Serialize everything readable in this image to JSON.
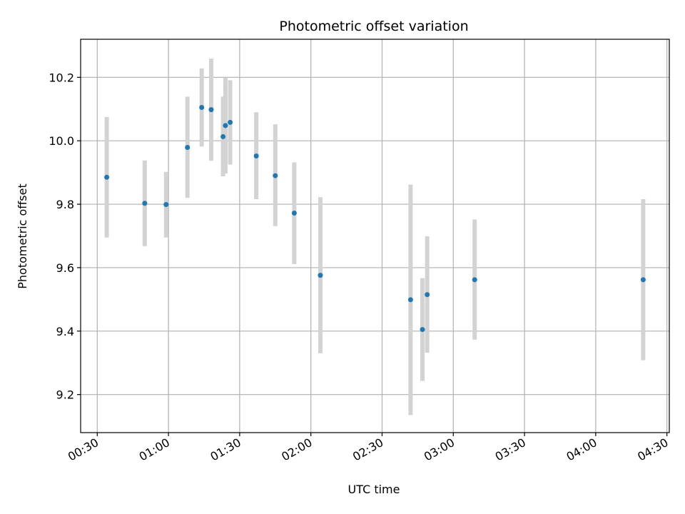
{
  "chart_data": {
    "type": "scatter",
    "title": "Photometric offset variation",
    "xlabel": "UTC time",
    "ylabel": "Photometric offset",
    "x_ticks": [
      "00:30",
      "01:00",
      "01:30",
      "02:00",
      "02:30",
      "03:00",
      "03:30",
      "04:00",
      "04:30"
    ],
    "y_ticks": [
      "9.2",
      "9.4",
      "9.6",
      "9.8",
      "10.0",
      "10.2"
    ],
    "xlim": [
      "00:23",
      "04:31"
    ],
    "ylim": [
      9.08,
      10.32
    ],
    "grid": true,
    "colors": {
      "marker": "#1f77b4",
      "errorbar": "#d3d3d3",
      "grid": "#b0b0b0",
      "axes": "#000000"
    },
    "points": [
      {
        "x": "00:34",
        "y": 9.885,
        "ylow": 9.695,
        "yhigh": 10.075
      },
      {
        "x": "00:50",
        "y": 9.803,
        "ylow": 9.668,
        "yhigh": 9.938
      },
      {
        "x": "00:59",
        "y": 9.799,
        "ylow": 9.695,
        "yhigh": 9.902
      },
      {
        "x": "01:08",
        "y": 9.979,
        "ylow": 9.82,
        "yhigh": 10.139
      },
      {
        "x": "01:14",
        "y": 10.105,
        "ylow": 9.982,
        "yhigh": 10.228
      },
      {
        "x": "01:18",
        "y": 10.098,
        "ylow": 9.937,
        "yhigh": 10.259
      },
      {
        "x": "01:23",
        "y": 10.013,
        "ylow": 9.888,
        "yhigh": 10.139
      },
      {
        "x": "01:24",
        "y": 10.048,
        "ylow": 9.897,
        "yhigh": 10.199
      },
      {
        "x": "01:26",
        "y": 10.058,
        "ylow": 9.925,
        "yhigh": 10.191
      },
      {
        "x": "01:37",
        "y": 9.952,
        "ylow": 9.816,
        "yhigh": 10.09
      },
      {
        "x": "01:45",
        "y": 9.89,
        "ylow": 9.731,
        "yhigh": 10.052
      },
      {
        "x": "01:53",
        "y": 9.772,
        "ylow": 9.611,
        "yhigh": 9.932
      },
      {
        "x": "02:04",
        "y": 9.576,
        "ylow": 9.33,
        "yhigh": 9.822
      },
      {
        "x": "02:42",
        "y": 9.499,
        "ylow": 9.135,
        "yhigh": 9.862
      },
      {
        "x": "02:47",
        "y": 9.405,
        "ylow": 9.243,
        "yhigh": 9.567
      },
      {
        "x": "02:49",
        "y": 9.515,
        "ylow": 9.332,
        "yhigh": 9.699
      },
      {
        "x": "03:09",
        "y": 9.562,
        "ylow": 9.373,
        "yhigh": 9.752
      },
      {
        "x": "04:20",
        "y": 9.562,
        "ylow": 9.308,
        "yhigh": 9.816
      }
    ]
  }
}
